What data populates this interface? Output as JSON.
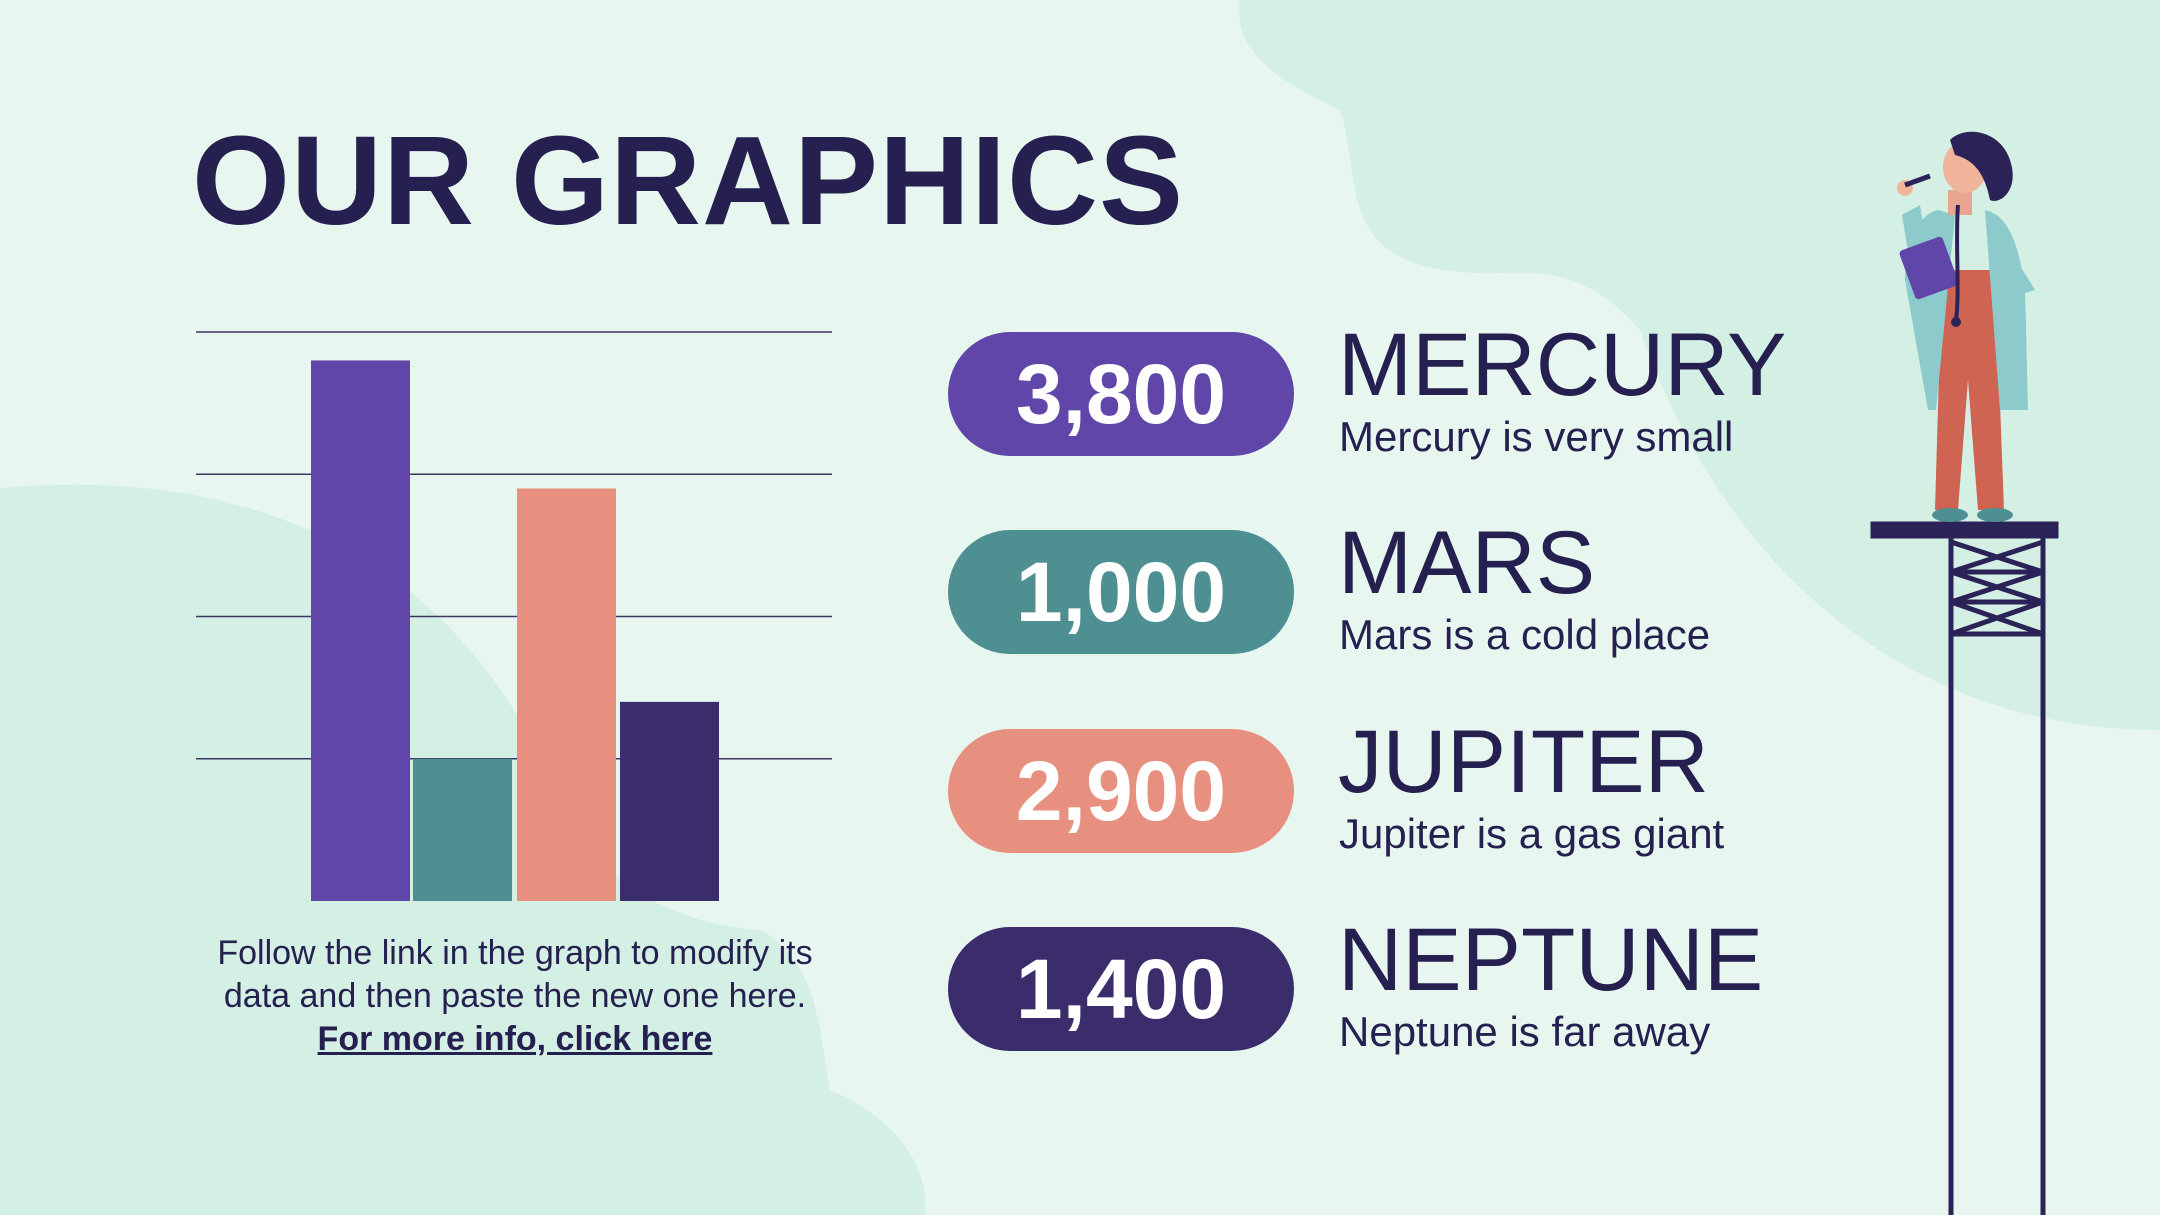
{
  "title": "OUR GRAPHICS",
  "colors": {
    "background": "#e8f6f0",
    "blob": "#d4efe4",
    "text": "#25204f",
    "purple": "#6046a8",
    "teal": "#4e8f91",
    "salmon": "#e89080",
    "navy": "#3b2d6b"
  },
  "chart_data": {
    "type": "bar",
    "categories": [
      "Mercury",
      "Mars",
      "Jupiter",
      "Neptune"
    ],
    "values": [
      3800,
      1000,
      2900,
      1400
    ],
    "colors": [
      "#6046a8",
      "#4e8f91",
      "#e89080",
      "#3b2d6b"
    ],
    "ylim": [
      0,
      4000
    ],
    "gridlines": [
      1000,
      2000,
      3000,
      4000
    ],
    "grid": true,
    "axis_labels_visible": false
  },
  "caption": {
    "text": "Follow the link in the graph to modify its data and then paste the new one here. ",
    "link": "For more info, click here"
  },
  "stats": [
    {
      "value": "3,800",
      "name": "MERCURY",
      "desc": "Mercury is very small",
      "color": "#6046a8"
    },
    {
      "value": "1,000",
      "name": "MARS",
      "desc": "Mars is a cold place",
      "color": "#4e8f91"
    },
    {
      "value": "2,900",
      "name": "JUPITER",
      "desc": "Jupiter is a gas giant",
      "color": "#e89080"
    },
    {
      "value": "1,400",
      "name": "NEPTUNE",
      "desc": "Neptune is far away",
      "color": "#3b2d6b"
    }
  ]
}
